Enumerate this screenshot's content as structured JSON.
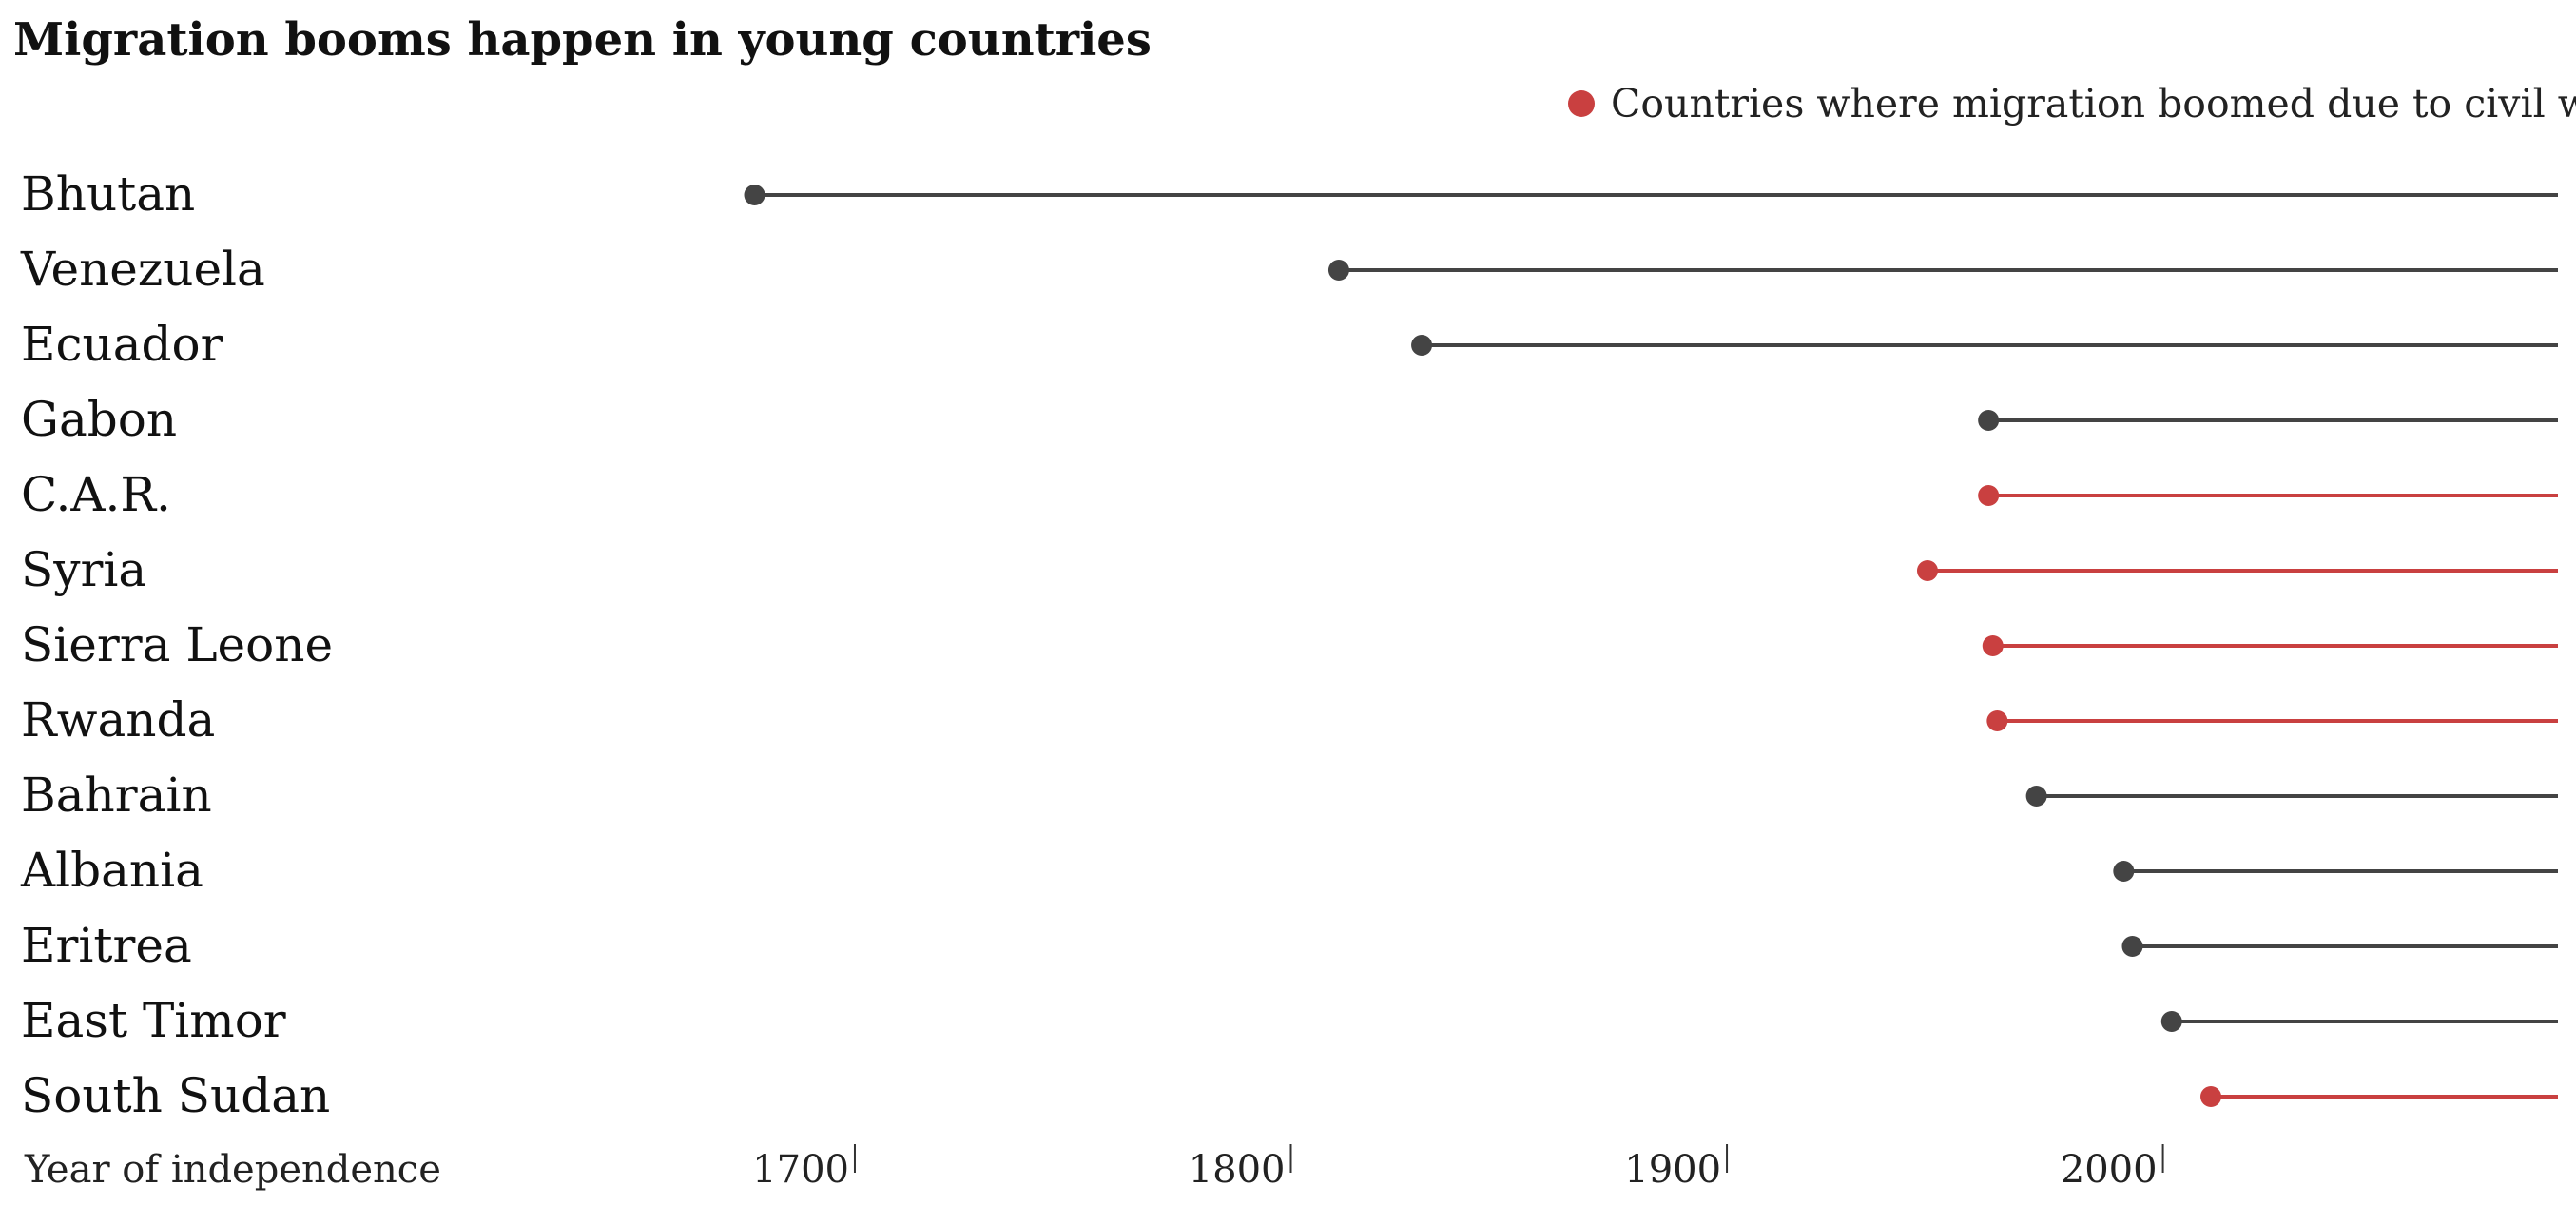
{
  "chart_data": {
    "type": "dot-line",
    "title": "Migration booms happen in young countries",
    "xlabel": "Year of independence",
    "xlim": [
      1630,
      2040
    ],
    "xticks": [
      1700,
      1800,
      1900,
      2000
    ],
    "legend": {
      "label": "Countries where migration boomed due to civil war",
      "color": "#c94040",
      "placement": "top-right"
    },
    "colors": {
      "default": "#444444",
      "civil_war": "#c94040"
    },
    "rows": [
      {
        "country": "Bhutan",
        "year": 1677,
        "civil_war": false
      },
      {
        "country": "Venezuela",
        "year": 1811,
        "civil_war": false
      },
      {
        "country": "Ecuador",
        "year": 1830,
        "civil_war": false
      },
      {
        "country": "Gabon",
        "year": 1960,
        "civil_war": false
      },
      {
        "country": "C.A.R.",
        "year": 1960,
        "civil_war": true
      },
      {
        "country": "Syria",
        "year": 1946,
        "civil_war": true
      },
      {
        "country": "Sierra Leone",
        "year": 1961,
        "civil_war": true
      },
      {
        "country": "Rwanda",
        "year": 1962,
        "civil_war": true
      },
      {
        "country": "Bahrain",
        "year": 1971,
        "civil_war": false
      },
      {
        "country": "Albania",
        "year": 1991,
        "civil_war": false
      },
      {
        "country": "Eritrea",
        "year": 1993,
        "civil_war": false
      },
      {
        "country": "East Timor",
        "year": 2002,
        "civil_war": false
      },
      {
        "country": "South Sudan",
        "year": 2011,
        "civil_war": true
      }
    ]
  }
}
